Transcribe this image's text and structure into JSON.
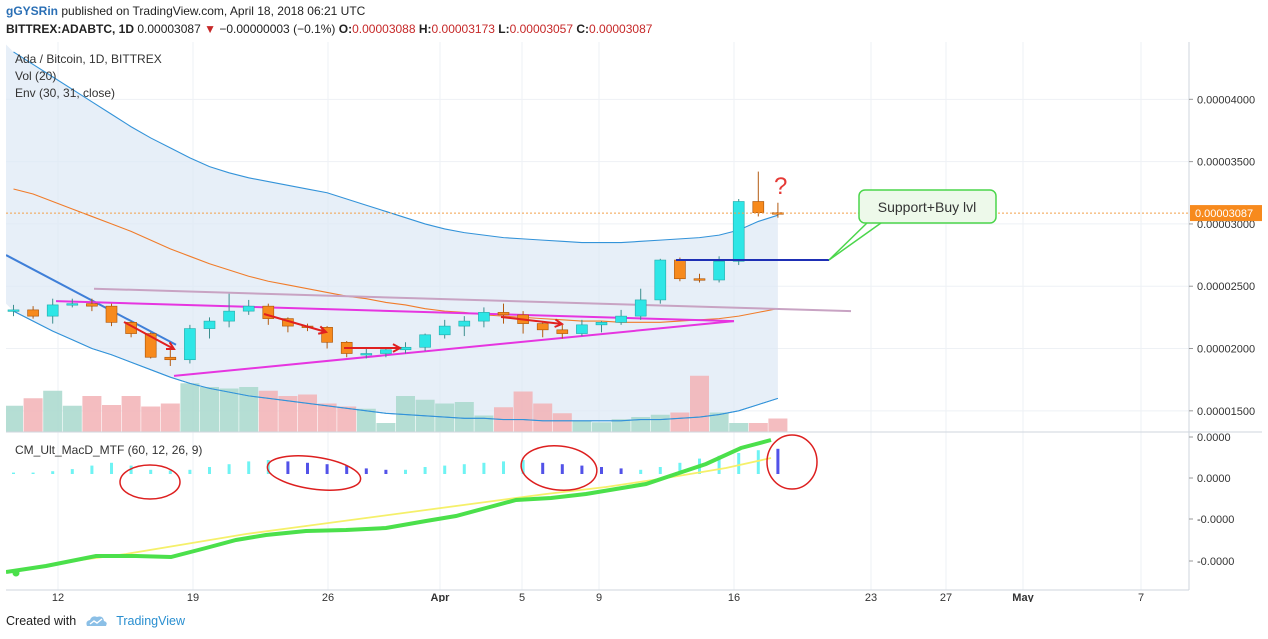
{
  "header": {
    "author": "gGYSRin",
    "published_text": "published on TradingView.com, April 18, 2018 06:21 UTC",
    "symbol": "BITTREX:ADABTC, 1D",
    "last_price": "0.00003087",
    "change_arrow": "▼",
    "change": "−0.00000003 (−0.1%)",
    "o_label": "O:",
    "o_value": "0.00003088",
    "h_label": "H:",
    "h_value": "0.00003173",
    "l_label": "L:",
    "l_value": "0.00003057",
    "c_label": "C:",
    "c_value": "0.00003087"
  },
  "legend": {
    "title": "Ada / Bitcoin, 1D, BITTREX",
    "vol": "Vol (20)",
    "env": "Env (30, 31, close)",
    "macd": "CM_Ult_MacD_MTF (60, 12, 26, 9)"
  },
  "annotations": {
    "callout": "Support+Buy lvl",
    "question": "?"
  },
  "price_axis": {
    "ticks": [
      "0.00004000",
      "0.00003500",
      "0.00003000",
      "0.00002500",
      "0.00002000",
      "0.00001500"
    ],
    "current_label": "0.00003087"
  },
  "macd_axis": {
    "ticks": [
      "0.0000",
      "0.0000",
      "-0.0000",
      "-0.0000"
    ]
  },
  "x_axis": {
    "ticks": [
      "12",
      "19",
      "26",
      "Apr",
      "5",
      "9",
      "16",
      "23",
      "27",
      "May",
      "7"
    ]
  },
  "footer": {
    "created": "Created with",
    "brand": "TradingView"
  },
  "colors": {
    "up": "#2ee6e6",
    "down": "#f78a1d",
    "vol_up": "#a8d8cc",
    "vol_down": "#f2b2b5",
    "env_fill": "#dde8f5",
    "env_line": "#3393d9",
    "basis": "#f07c2a",
    "magenta": "#e635e0",
    "arrow": "#e02020",
    "macd_fast": "#4be04b",
    "macd_slow": "#f5f06a",
    "hist_up": "#6ff3f3",
    "hist_down": "#5252e8",
    "support": "#1e2fb5"
  },
  "chart_data": {
    "type": "candlestick",
    "x": [
      "Mar 10",
      "Mar 11",
      "Mar 12",
      "Mar 13",
      "Mar 14",
      "Mar 15",
      "Mar 16",
      "Mar 17",
      "Mar 18",
      "Mar 19",
      "Mar 20",
      "Mar 21",
      "Mar 22",
      "Mar 23",
      "Mar 24",
      "Mar 25",
      "Mar 26",
      "Mar 27",
      "Mar 28",
      "Mar 29",
      "Mar 30",
      "Mar 31",
      "Apr 1",
      "Apr 2",
      "Apr 3",
      "Apr 4",
      "Apr 5",
      "Apr 6",
      "Apr 7",
      "Apr 8",
      "Apr 9",
      "Apr 10",
      "Apr 11",
      "Apr 12",
      "Apr 13",
      "Apr 14",
      "Apr 15",
      "Apr 16",
      "Apr 17",
      "Apr 18"
    ],
    "open": [
      2.31e-05,
      2.31e-05,
      2.26e-05,
      2.35e-05,
      2.36e-05,
      2.34e-05,
      2.21e-05,
      2.12e-05,
      1.93e-05,
      1.91e-05,
      2.16e-05,
      2.22e-05,
      2.3e-05,
      2.34e-05,
      2.24e-05,
      2.18e-05,
      2.17e-05,
      2.05e-05,
      1.96e-05,
      1.96e-05,
      1.99e-05,
      2.01e-05,
      2.11e-05,
      2.18e-05,
      2.22e-05,
      2.29e-05,
      2.27e-05,
      2.2e-05,
      2.15e-05,
      2.12e-05,
      2.19e-05,
      2.21e-05,
      2.26e-05,
      2.39e-05,
      2.71e-05,
      2.56e-05,
      2.55e-05,
      2.7e-05,
      3.18e-05,
      3.09e-05
    ],
    "high": [
      2.35e-05,
      2.34e-05,
      2.4e-05,
      2.4e-05,
      2.4e-05,
      2.36e-05,
      2.22e-05,
      2.13e-05,
      1.99e-05,
      2.19e-05,
      2.25e-05,
      2.44e-05,
      2.39e-05,
      2.36e-05,
      2.25e-05,
      2.2e-05,
      2.18e-05,
      2.06e-05,
      2e-05,
      2.01e-05,
      2.05e-05,
      2.12e-05,
      2.23e-05,
      2.26e-05,
      2.33e-05,
      2.36e-05,
      2.3e-05,
      2.22e-05,
      2.19e-05,
      2.23e-05,
      2.22e-05,
      2.31e-05,
      2.48e-05,
      2.72e-05,
      2.73e-05,
      2.6e-05,
      2.74e-05,
      3.2e-05,
      3.42e-05,
      3.17e-05
    ],
    "low": [
      2.26e-05,
      2.24e-05,
      2.2e-05,
      2.33e-05,
      2.3e-05,
      2.18e-05,
      2.09e-05,
      1.92e-05,
      1.86e-05,
      1.88e-05,
      2.08e-05,
      2.17e-05,
      2.27e-05,
      2.19e-05,
      2.13e-05,
      2.14e-05,
      2e-05,
      1.93e-05,
      1.92e-05,
      1.93e-05,
      1.96e-05,
      1.98e-05,
      2.08e-05,
      2.1e-05,
      2.17e-05,
      2.2e-05,
      2.12e-05,
      2.09e-05,
      2.08e-05,
      2.1e-05,
      2.13e-05,
      2.19e-05,
      2.23e-05,
      2.36e-05,
      2.54e-05,
      2.53e-05,
      2.53e-05,
      2.67e-05,
      3.06e-05,
      3.05e-05
    ],
    "close": [
      2.31e-05,
      2.26e-05,
      2.35e-05,
      2.36e-05,
      2.34e-05,
      2.21e-05,
      2.12e-05,
      1.93e-05,
      1.91e-05,
      2.16e-05,
      2.22e-05,
      2.3e-05,
      2.34e-05,
      2.24e-05,
      2.18e-05,
      2.17e-05,
      2.05e-05,
      1.96e-05,
      1.96e-05,
      1.99e-05,
      2.01e-05,
      2.11e-05,
      2.18e-05,
      2.22e-05,
      2.29e-05,
      2.27e-05,
      2.2e-05,
      2.15e-05,
      2.12e-05,
      2.19e-05,
      2.21e-05,
      2.26e-05,
      2.39e-05,
      2.71e-05,
      2.56e-05,
      2.55e-05,
      2.7e-05,
      3.18e-05,
      3.09e-05,
      3.08e-05
    ],
    "volume": [
      35,
      45,
      55,
      35,
      48,
      36,
      48,
      34,
      38,
      65,
      60,
      58,
      60,
      55,
      48,
      50,
      38,
      34,
      31,
      12,
      48,
      43,
      38,
      40,
      22,
      33,
      54,
      38,
      25,
      15,
      13,
      17,
      20,
      23,
      26,
      75,
      26,
      12,
      12,
      18
    ],
    "env_upper": [
      4.38e-05,
      4.28e-05,
      4.18e-05,
      4.08e-05,
      3.98e-05,
      3.88e-05,
      3.78e-05,
      3.69e-05,
      3.61e-05,
      3.53e-05,
      3.46e-05,
      3.41e-05,
      3.37e-05,
      3.34e-05,
      3.31e-05,
      3.28e-05,
      3.25e-05,
      3.2e-05,
      3.15e-05,
      3.1e-05,
      3.05e-05,
      3e-05,
      2.96e-05,
      2.93e-05,
      2.91e-05,
      2.89e-05,
      2.88e-05,
      2.87e-05,
      2.86e-05,
      2.85e-05,
      2.85e-05,
      2.85e-05,
      2.86e-05,
      2.87e-05,
      2.88e-05,
      2.89e-05,
      2.91e-05,
      2.95e-05,
      3.02e-05,
      3.07e-05
    ],
    "env_basis": [
      3.28e-05,
      3.24e-05,
      3.18e-05,
      3.12e-05,
      3.06e-05,
      3e-05,
      2.94e-05,
      2.87e-05,
      2.8e-05,
      2.74e-05,
      2.68e-05,
      2.63e-05,
      2.58e-05,
      2.54e-05,
      2.51e-05,
      2.48e-05,
      2.45e-05,
      2.42e-05,
      2.4e-05,
      2.37e-05,
      2.35e-05,
      2.32e-05,
      2.3e-05,
      2.29e-05,
      2.27e-05,
      2.26e-05,
      2.25e-05,
      2.24e-05,
      2.23e-05,
      2.22e-05,
      2.22e-05,
      2.21e-05,
      2.21e-05,
      2.21e-05,
      2.22e-05,
      2.23e-05,
      2.24e-05,
      2.26e-05,
      2.29e-05,
      2.32e-05
    ],
    "env_lower": [
      2.3e-05,
      2.22e-05,
      2.14e-05,
      2.07e-05,
      2e-05,
      1.95e-05,
      1.89e-05,
      1.83e-05,
      1.77e-05,
      1.72e-05,
      1.68e-05,
      1.65e-05,
      1.62e-05,
      1.6e-05,
      1.58e-05,
      1.56e-05,
      1.54e-05,
      1.52e-05,
      1.5e-05,
      1.48e-05,
      1.47e-05,
      1.46e-05,
      1.45e-05,
      1.44e-05,
      1.44e-05,
      1.43e-05,
      1.43e-05,
      1.42e-05,
      1.42e-05,
      1.42e-05,
      1.42e-05,
      1.42e-05,
      1.43e-05,
      1.43e-05,
      1.44e-05,
      1.45e-05,
      1.47e-05,
      1.5e-05,
      1.55e-05,
      1.6e-05
    ],
    "macd_hist": [
      0.1,
      0.1,
      0.2,
      0.35,
      0.6,
      0.8,
      0.6,
      0.3,
      0.25,
      0.3,
      0.5,
      0.7,
      0.9,
      1.0,
      -0.9,
      -0.8,
      -0.7,
      -0.6,
      -0.4,
      -0.3,
      0.3,
      0.5,
      0.6,
      0.7,
      0.8,
      0.9,
      1.0,
      -0.8,
      -0.7,
      -0.6,
      -0.5,
      -0.4,
      0.3,
      0.5,
      0.8,
      1.1,
      1.3,
      1.5,
      1.7,
      -1.8
    ],
    "ylim": [
      1.33e-05,
      4.46e-05
    ]
  }
}
